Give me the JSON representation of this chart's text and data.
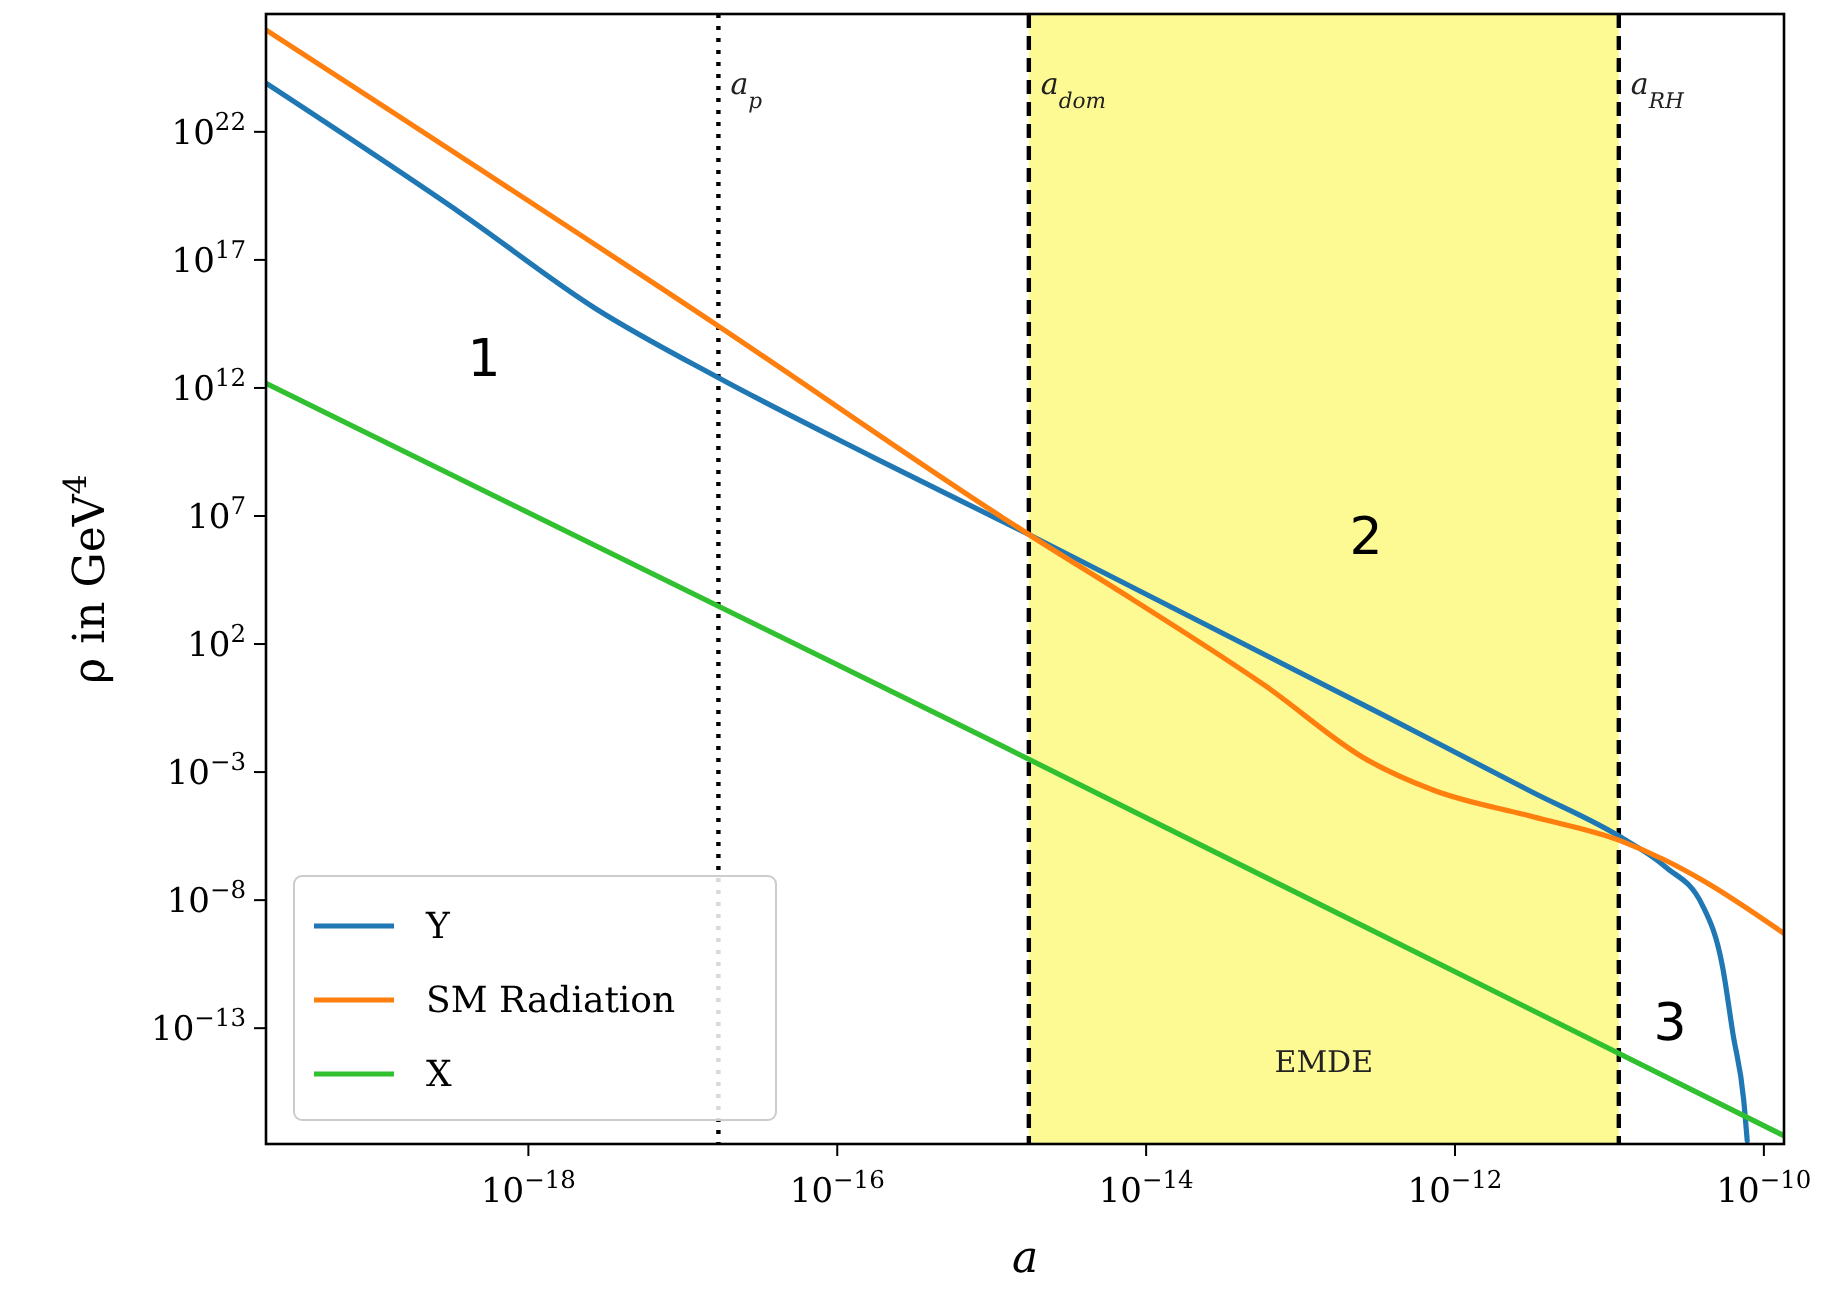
{
  "chart_data": {
    "type": "line",
    "xlabel": "a",
    "ylabel": "ρ in GeV$^{4}$",
    "log": "xy",
    "legend": "bottom left",
    "grid": false,
    "xlim": [
      2e-20,
      1.35e-10
    ],
    "ylim": [
      3e-18,
      4e+26
    ],
    "xticks": [
      {
        "value": 1e-18,
        "label": "10$^{−18}$"
      },
      {
        "value": 1e-16,
        "label": "10$^{−16}$"
      },
      {
        "value": 1e-14,
        "label": "10$^{−14}$"
      },
      {
        "value": 1e-12,
        "label": "10$^{−12}$"
      },
      {
        "value": 1e-10,
        "label": "10$^{−10}$"
      }
    ],
    "yticks": [
      {
        "value": 1e-13,
        "label": "10$^{−13}$"
      },
      {
        "value": 1e-08,
        "label": "10$^{−8}$"
      },
      {
        "value": 0.001,
        "label": "10$^{−3}$"
      },
      {
        "value": 100.0,
        "label": "10$^{2}$"
      },
      {
        "value": 10000000.0,
        "label": "10$^{7}$"
      },
      {
        "value": 1000000000000.0,
        "label": "10$^{12}$"
      },
      {
        "value": 1e+17,
        "label": "10$^{17}$"
      },
      {
        "value": 1e+22,
        "label": "10$^{22}$"
      }
    ],
    "series": [
      {
        "name": "Y",
        "color": "#1f77b4",
        "x": [
          2e-20,
          3.7e-19,
          2.7e-18,
          1.7e-17,
          1.7e-16,
          1.74e-15,
          3.2e-13,
          3.2e-12,
          1.15e-11,
          2.3e-11,
          4e-11,
          5.4e-11,
          6.3e-11,
          7.4e-11,
          7.8e-11
        ],
        "values": [
          7.9e+23,
          6.3e+18,
          1300000000000000.0,
          2500000000000.0,
          2000000000.0,
          1900000.0,
          0.21,
          0.00016,
          3.2e-06,
          2e-07,
          6.3e-09,
          2.5e-11,
          6.3e-14,
          1.6e-16,
          4e-18
        ]
      },
      {
        "name": "SM Radiation",
        "color": "#ff7f0e",
        "x": [
          2e-20,
          1.7e-17,
          1.15e-15,
          1.74e-15,
          8.3e-15,
          6e-14,
          2.7e-13,
          7.2e-13,
          3.2e-12,
          1.15e-11,
          2.3e-11,
          4e-11,
          1.35e-10
        ],
        "values": [
          9.5e+25,
          260000000000000.0,
          9500000.0,
          1900000.0,
          5200.0,
          2.2,
          0.003,
          0.0002,
          1.8e-05,
          2.2e-06,
          3.6e-07,
          6e-08,
          5e-10
        ]
      },
      {
        "name": "X",
        "color": "#30c030",
        "x": [
          2e-20,
          1.15e-15,
          1.35e-10
        ],
        "values": [
          1500000000000.0,
          0.011,
          6.3e-18
        ]
      }
    ],
    "ref_lines": [
      {
        "axis": "x",
        "value": 1.7e-17,
        "label": "a$_{p}$",
        "line_style": "dotted",
        "color": "#000000"
      },
      {
        "axis": "x",
        "value": 1.74e-15,
        "label": "a$_{dom}$",
        "line_style": "dashed",
        "color": "#000000"
      },
      {
        "axis": "x",
        "value": 1.15e-11,
        "label": "a$_{RH}$",
        "line_style": "dashed",
        "color": "#000000"
      }
    ],
    "bands": [
      {
        "axis": "x",
        "from": 1.74e-15,
        "to": 1.15e-11,
        "label": "EMDE",
        "color": "#fdfa94"
      }
    ],
    "annotations": [
      "1",
      "2",
      "3"
    ]
  }
}
